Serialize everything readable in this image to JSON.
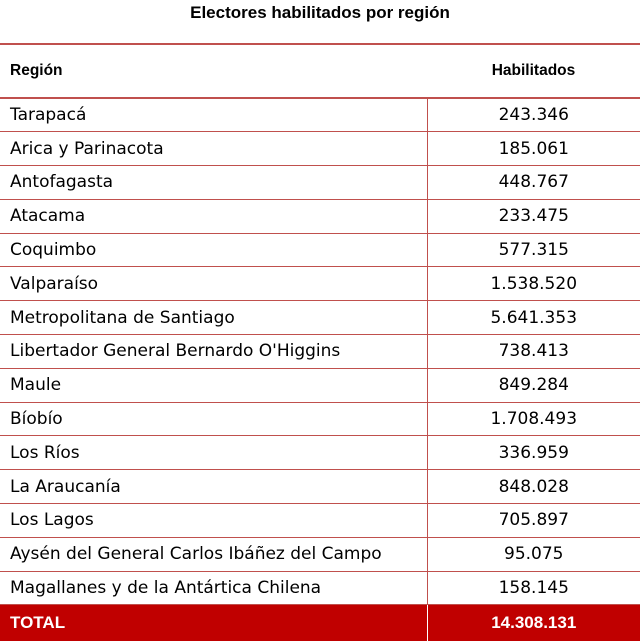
{
  "title": "Electores habilitados por región",
  "columns": {
    "region": "Región",
    "habilitados": "Habilitados"
  },
  "rows": [
    {
      "region": "Tarapacá",
      "habilitados": "243.346"
    },
    {
      "region": "Arica y Parinacota",
      "habilitados": "185.061"
    },
    {
      "region": "Antofagasta",
      "habilitados": "448.767"
    },
    {
      "region": "Atacama",
      "habilitados": "233.475"
    },
    {
      "region": "Coquimbo",
      "habilitados": "577.315"
    },
    {
      "region": "Valparaíso",
      "habilitados": "1.538.520"
    },
    {
      "region": "Metropolitana de Santiago",
      "habilitados": "5.641.353"
    },
    {
      "region": "Libertador General Bernardo O'Higgins",
      "habilitados": "738.413"
    },
    {
      "region": "Maule",
      "habilitados": "849.284"
    },
    {
      "region": "Bíobío",
      "habilitados": "1.708.493"
    },
    {
      "region": "Los Ríos",
      "habilitados": "336.959"
    },
    {
      "region": "La Araucanía",
      "habilitados": "848.028"
    },
    {
      "region": "Los Lagos",
      "habilitados": "705.897"
    },
    {
      "region": "Aysén del General Carlos Ibáñez del Campo",
      "habilitados": "95.075"
    },
    {
      "region": "Magallanes y de la Antártica Chilena",
      "habilitados": "158.145"
    }
  ],
  "total": {
    "label": "TOTAL",
    "value": "14.308.131"
  },
  "colors": {
    "accent": "#c0504d",
    "total_background": "#c00000",
    "total_text": "#ffffff"
  }
}
